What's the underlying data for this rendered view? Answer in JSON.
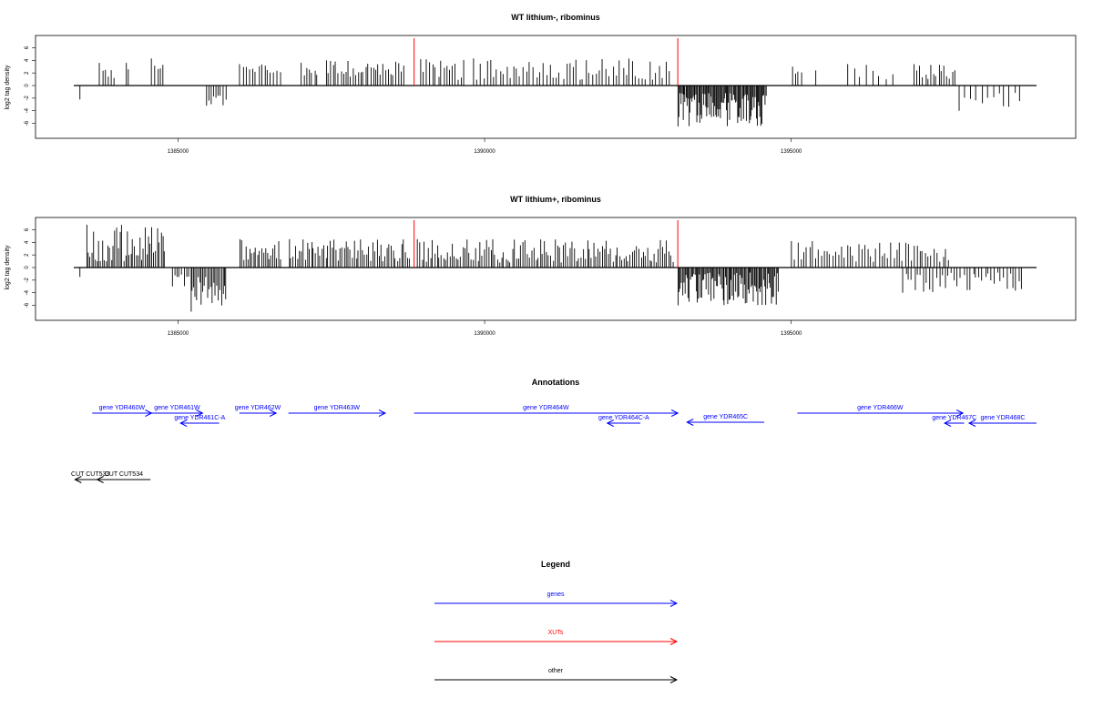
{
  "chart_data": [
    {
      "type": "bar",
      "title": "WT lithium-, ribominus",
      "ylabel": "log2 tag density",
      "xlim": [
        1383300,
        1399000
      ],
      "ylim": [
        -7.5,
        7.5
      ],
      "x_ticks": [
        1385000,
        1390000,
        1395000
      ],
      "y_ticks": [
        -6,
        -4,
        -2,
        0,
        2,
        4,
        6
      ],
      "markers": [
        1388850,
        1393150
      ],
      "regions": [
        {
          "start": 1383400,
          "end": 1383400,
          "min": -2.2,
          "max": -2.2,
          "count": 1
        },
        {
          "start": 1383700,
          "end": 1384000,
          "min": 1.0,
          "max": 3.6,
          "count": 6
        },
        {
          "start": 1384150,
          "end": 1384200,
          "min": 2.5,
          "max": 3.6,
          "count": 2
        },
        {
          "start": 1384550,
          "end": 1384800,
          "min": 2.2,
          "max": 4.3,
          "count": 5
        },
        {
          "start": 1385450,
          "end": 1385800,
          "min": -3.2,
          "max": -1.5,
          "count": 9
        },
        {
          "start": 1386000,
          "end": 1386700,
          "min": 1.5,
          "max": 3.4,
          "count": 14
        },
        {
          "start": 1387000,
          "end": 1387300,
          "min": 1.6,
          "max": 3.6,
          "count": 7
        },
        {
          "start": 1387400,
          "end": 1388700,
          "min": 1.3,
          "max": 4.0,
          "count": 32
        },
        {
          "start": 1388950,
          "end": 1389700,
          "min": 0.9,
          "max": 4.2,
          "count": 16
        },
        {
          "start": 1389800,
          "end": 1393050,
          "min": 0.9,
          "max": 4.3,
          "count": 60
        },
        {
          "start": 1393150,
          "end": 1394600,
          "min": -6.5,
          "max": -1.2,
          "count": 90
        },
        {
          "start": 1395000,
          "end": 1395200,
          "min": 1.5,
          "max": 3.0,
          "count": 4
        },
        {
          "start": 1395400,
          "end": 1395400,
          "min": 2.4,
          "max": 2.4,
          "count": 1
        },
        {
          "start": 1395900,
          "end": 1396700,
          "min": 1.0,
          "max": 3.4,
          "count": 8
        },
        {
          "start": 1397000,
          "end": 1397700,
          "min": 1.0,
          "max": 3.4,
          "count": 16
        },
        {
          "start": 1397700,
          "end": 1398800,
          "min": -4.0,
          "max": -1.0,
          "count": 12
        }
      ]
    },
    {
      "type": "bar",
      "title": "WT lithium+, ribominus",
      "ylabel": "log2 tag density",
      "xlim": [
        1383300,
        1399000
      ],
      "ylim": [
        -7.5,
        7.5
      ],
      "x_ticks": [
        1385000,
        1390000,
        1395000
      ],
      "y_ticks": [
        -6,
        -4,
        -2,
        0,
        2,
        4,
        6
      ],
      "markers": [
        1388850,
        1393150
      ],
      "regions": [
        {
          "start": 1383400,
          "end": 1383400,
          "min": -1.5,
          "max": -1.5,
          "count": 1
        },
        {
          "start": 1383500,
          "end": 1384800,
          "min": 1.0,
          "max": 6.8,
          "count": 45
        },
        {
          "start": 1384900,
          "end": 1385200,
          "min": -3.0,
          "max": -0.8,
          "count": 8
        },
        {
          "start": 1385200,
          "end": 1385800,
          "min": -7.0,
          "max": -1.5,
          "count": 24
        },
        {
          "start": 1386000,
          "end": 1386700,
          "min": 1.2,
          "max": 4.5,
          "count": 22
        },
        {
          "start": 1386800,
          "end": 1388800,
          "min": 1.0,
          "max": 4.5,
          "count": 60
        },
        {
          "start": 1388900,
          "end": 1393100,
          "min": 0.8,
          "max": 4.5,
          "count": 120
        },
        {
          "start": 1393150,
          "end": 1394800,
          "min": -6.0,
          "max": -0.8,
          "count": 90
        },
        {
          "start": 1395000,
          "end": 1397600,
          "min": 0.9,
          "max": 4.2,
          "count": 55
        },
        {
          "start": 1396800,
          "end": 1398800,
          "min": -4.0,
          "max": -0.8,
          "count": 40
        }
      ]
    }
  ],
  "annotations": {
    "title": "Annotations",
    "genes": [
      {
        "label": "gene YDR460W",
        "start": 1383600,
        "end": 1384570,
        "strand": "+",
        "row": 0
      },
      {
        "label": "gene YDR461W",
        "start": 1384570,
        "end": 1385400,
        "strand": "+",
        "row": 0
      },
      {
        "label": "gene YDR461C-A",
        "start": 1385040,
        "end": 1385670,
        "strand": "-",
        "row": 1
      },
      {
        "label": "gene YDR462W",
        "start": 1386000,
        "end": 1386600,
        "strand": "+",
        "row": 0
      },
      {
        "label": "gene YDR463W",
        "start": 1386800,
        "end": 1388380,
        "strand": "+",
        "row": 0
      },
      {
        "label": "gene YDR464W",
        "start": 1388850,
        "end": 1393150,
        "strand": "+",
        "row": 0
      },
      {
        "label": "gene YDR464C-A",
        "start": 1392000,
        "end": 1392540,
        "strand": "-",
        "row": 1
      },
      {
        "label": "gene YDR465C",
        "start": 1393300,
        "end": 1394560,
        "strand": "-",
        "row": 2
      },
      {
        "label": "gene YDR466W",
        "start": 1395100,
        "end": 1397800,
        "strand": "+",
        "row": 0
      },
      {
        "label": "gene YDR467C",
        "start": 1397500,
        "end": 1397820,
        "strand": "-",
        "row": 1
      },
      {
        "label": "gene YDR468C",
        "start": 1397900,
        "end": 1399000,
        "strand": "-",
        "row": 1
      }
    ],
    "others": [
      {
        "label": "CUT CUT533",
        "start": 1383320,
        "end": 1383820,
        "strand": "-"
      },
      {
        "label": "CUT CUT534",
        "start": 1383680,
        "end": 1384550,
        "strand": "-"
      }
    ]
  },
  "legend": {
    "title": "Legend",
    "items": [
      {
        "label": "genes",
        "color": "#0000ff"
      },
      {
        "label": "XUTs",
        "color": "#ff0000"
      },
      {
        "label": "other",
        "color": "#000000"
      }
    ]
  },
  "colors": {
    "gene": "#0000ff",
    "xut": "#ff0000",
    "other": "#000000"
  }
}
